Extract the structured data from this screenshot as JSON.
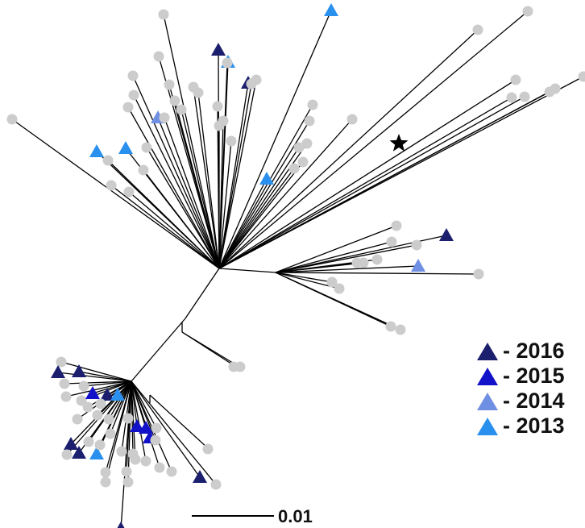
{
  "legend": [
    {
      "label": "- 2016",
      "color": "#1c1f6e"
    },
    {
      "label": "- 2015",
      "color": "#1212c8"
    },
    {
      "label": "- 2014",
      "color": "#6f8fe2"
    },
    {
      "label": "- 2013",
      "color": "#2a90ee"
    }
  ],
  "scale_bar": {
    "label": "0.01"
  },
  "colors": {
    "branch": "#000000",
    "sample_dot": "#cccccc",
    "star": "#000000"
  },
  "icons": [
    "triangle-marker-icon",
    "circle-tip-icon",
    "star-icon"
  ]
}
